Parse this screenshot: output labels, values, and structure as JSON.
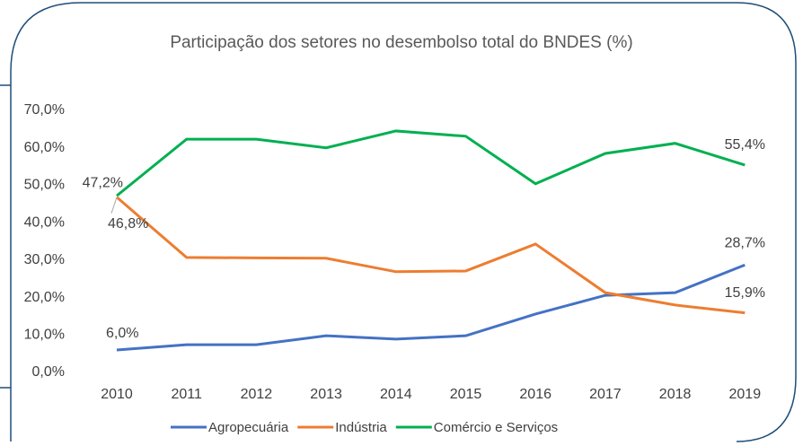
{
  "chart_data": {
    "type": "line",
    "title": "Participação dos setores no desembolso total do BNDES (%)",
    "categories": [
      "2010",
      "2011",
      "2012",
      "2013",
      "2014",
      "2015",
      "2016",
      "2017",
      "2018",
      "2019"
    ],
    "series": [
      {
        "name": "Agropecuária",
        "color": "#4472c4",
        "values": [
          6.0,
          7.4,
          7.4,
          9.8,
          8.9,
          9.8,
          15.6,
          20.6,
          21.3,
          28.7
        ],
        "value_labels": [
          "6,0%",
          null,
          null,
          null,
          null,
          null,
          null,
          null,
          null,
          "28,7%"
        ]
      },
      {
        "name": "Indústria",
        "color": "#ed7d31",
        "values": [
          46.8,
          30.7,
          30.6,
          30.5,
          26.9,
          27.1,
          34.3,
          21.3,
          18.0,
          15.9
        ],
        "value_labels": [
          "46,8%",
          null,
          null,
          null,
          null,
          null,
          null,
          null,
          null,
          "15,9%"
        ]
      },
      {
        "name": "Comércio e Serviços",
        "color": "#00b050",
        "values": [
          47.2,
          62.3,
          62.3,
          60.0,
          64.5,
          63.1,
          50.4,
          58.5,
          61.2,
          55.4
        ],
        "value_labels": [
          "47,2%",
          null,
          null,
          null,
          null,
          null,
          null,
          null,
          null,
          "55,4%"
        ]
      }
    ],
    "ylim": [
      0,
      70
    ],
    "yticks": [
      {
        "value": 0,
        "label": "0,0%"
      },
      {
        "value": 10,
        "label": "10,0%"
      },
      {
        "value": 20,
        "label": "20,0%"
      },
      {
        "value": 30,
        "label": "30,0%"
      },
      {
        "value": 40,
        "label": "40,0%"
      },
      {
        "value": 50,
        "label": "50,0%"
      },
      {
        "value": 60,
        "label": "60,0%"
      },
      {
        "value": 70,
        "label": "70,0%"
      }
    ],
    "legend": "bottom"
  }
}
